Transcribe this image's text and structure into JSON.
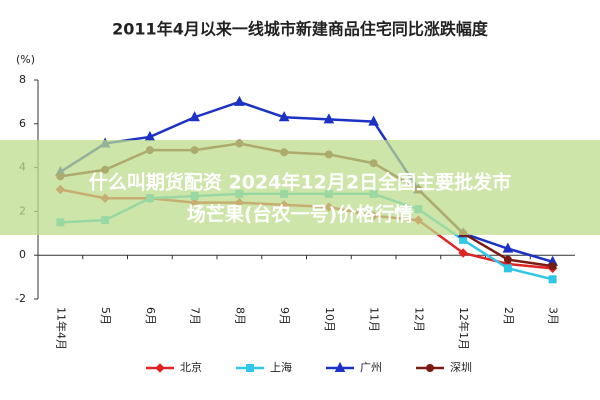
{
  "chart_data": {
    "type": "line",
    "title": "2011年4月以来一线城市新建商品住宅同比涨跌幅度",
    "y_label": "(%)",
    "categories": [
      "11年4月",
      "5月",
      "6月",
      "7月",
      "8月",
      "9月",
      "10月",
      "11月",
      "12月",
      "12年1月",
      "2月",
      "3月"
    ],
    "series": [
      {
        "name": "北京",
        "color": "#e02424",
        "marker": "diamond",
        "values": [
          3.0,
          2.6,
          2.6,
          2.4,
          2.4,
          2.3,
          2.2,
          1.8,
          1.6,
          0.1,
          -0.4,
          -0.6
        ]
      },
      {
        "name": "上海",
        "color": "#2fc6e8",
        "marker": "square",
        "values": [
          1.5,
          1.6,
          2.6,
          2.7,
          2.8,
          2.8,
          2.8,
          2.8,
          2.1,
          0.7,
          -0.6,
          -1.1
        ]
      },
      {
        "name": "广州",
        "color": "#1c32c4",
        "marker": "triangle",
        "values": [
          3.8,
          5.1,
          5.4,
          6.3,
          7.0,
          6.3,
          6.2,
          6.1,
          3.0,
          1.0,
          0.3,
          -0.3
        ]
      },
      {
        "name": "深圳",
        "color": "#7a1a12",
        "marker": "circle",
        "values": [
          3.6,
          3.9,
          4.8,
          4.8,
          5.1,
          4.7,
          4.6,
          4.2,
          3.0,
          1.0,
          -0.2,
          -0.5
        ]
      }
    ],
    "ylim": [
      -2,
      8
    ],
    "yticks": [
      -2,
      0,
      2,
      4,
      6,
      8
    ],
    "overlay_text": [
      "什么叫期货配资 2024年12月2日全国主要批发市",
      "场芒果(台农一号)价格行情"
    ]
  }
}
